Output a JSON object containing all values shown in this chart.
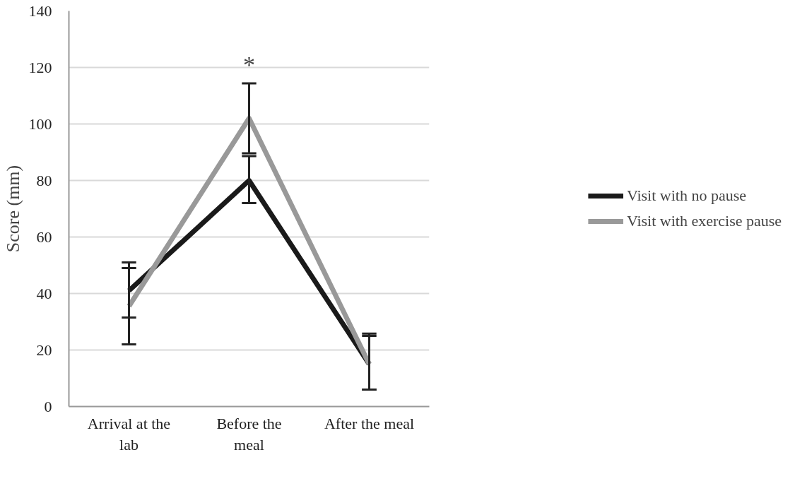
{
  "chart_data": {
    "type": "line",
    "ylabel": "Score (mm)",
    "categories": [
      "Arrival at the lab",
      "Before the meal",
      "After the meal"
    ],
    "series": [
      {
        "name": "Visit with no pause",
        "color": "#1a1a1a",
        "values": [
          41,
          80,
          15
        ],
        "errors": [
          [
            31.5,
            51
          ],
          [
            72,
            88.6
          ],
          [
            6,
            25
          ]
        ]
      },
      {
        "name": "Visit with exercise pause",
        "color": "#999999",
        "values": [
          35.5,
          102,
          15
        ],
        "errors": [
          [
            22,
            49
          ],
          [
            89.6,
            114.4
          ],
          [
            6,
            25.8
          ]
        ]
      }
    ],
    "ylim": [
      0,
      140
    ],
    "yticks": [
      0,
      20,
      40,
      60,
      80,
      100,
      120,
      140
    ],
    "grid": "y",
    "legend": "right",
    "marker": "none",
    "line_style": "solid",
    "annotations": [
      "*"
    ]
  }
}
